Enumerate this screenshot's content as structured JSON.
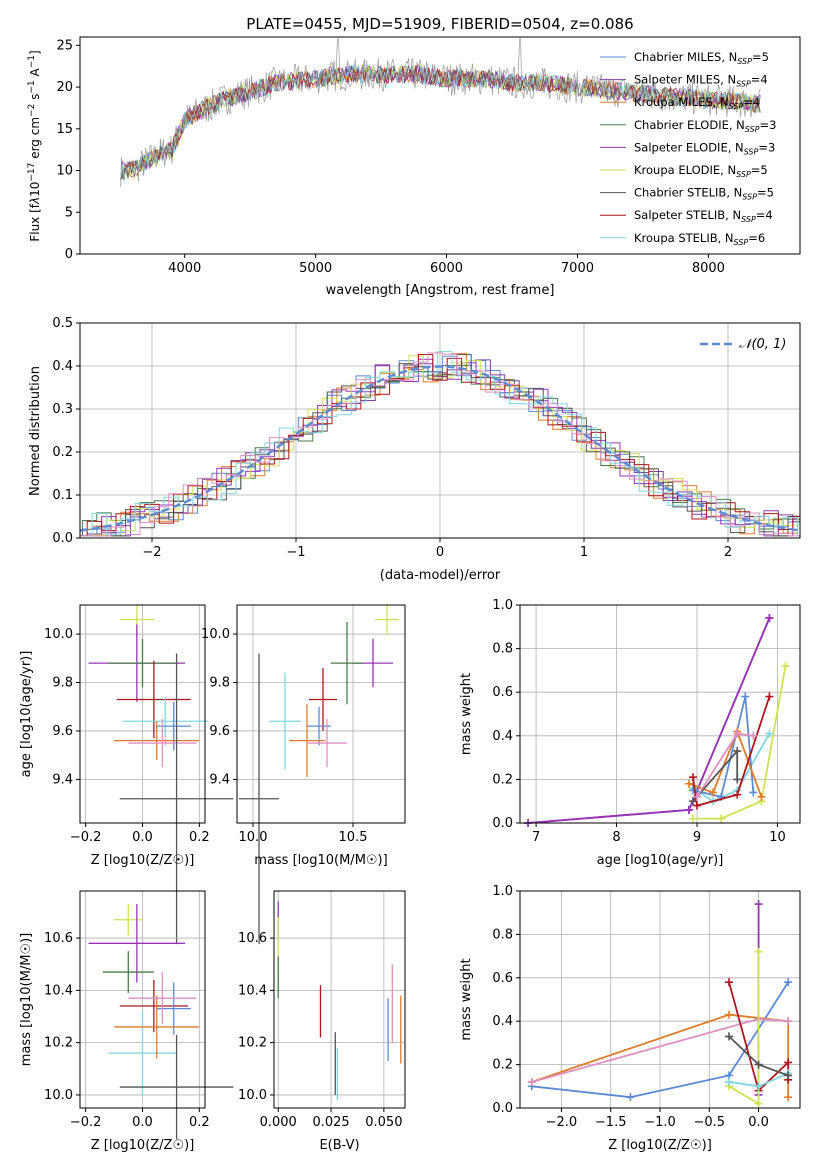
{
  "colors": {
    "chabrier_miles": "#5b8bd5",
    "salpeter_miles": "#7e3fa6",
    "kroupa_miles": "#e07b28",
    "chabrier_elodie": "#4a7a4a",
    "salpeter_elodie": "#9a35b8",
    "kroupa_elodie": "#cfe250",
    "chabrier_stelib": "#555555",
    "salpeter_stelib": "#b0141c",
    "kroupa_stelib": "#7fd6e0",
    "pink": "#e08fc4"
  },
  "chart_data": [
    {
      "id": "spectrum",
      "type": "line",
      "title": "PLATE=0455, MJD=51909, FIBERID=0504, z=0.086",
      "xlabel": "wavelength [Angstrom, rest frame]",
      "ylabel": "Flux [f_λ 10^-17 erg cm^-2 s^-1 A^-1]",
      "xlim": [
        3200,
        8700
      ],
      "ylim": [
        0,
        26
      ],
      "xticks": [
        4000,
        5000,
        6000,
        7000,
        8000
      ],
      "yticks": [
        0,
        5,
        10,
        15,
        20,
        25
      ],
      "grid": false,
      "legend_position": "top-right",
      "series": [
        {
          "name": "Chabrier MILES, N_SSP=5",
          "color": "#5b8bd5"
        },
        {
          "name": "Salpeter MILES, N_SSP=4",
          "color": "#7e3fa6"
        },
        {
          "name": "Kroupa MILES, N_SSP=4",
          "color": "#e07b28"
        },
        {
          "name": "Chabrier ELODIE, N_SSP=3",
          "color": "#4a7a4a"
        },
        {
          "name": "Salpeter ELODIE, N_SSP=3",
          "color": "#9a35b8"
        },
        {
          "name": "Kroupa ELODIE, N_SSP=5",
          "color": "#cfe250"
        },
        {
          "name": "Chabrier STELIB, N_SSP=5",
          "color": "#555555"
        },
        {
          "name": "Salpeter STELIB, N_SSP=4",
          "color": "#b0141c"
        },
        {
          "name": "Kroupa STELIB, N_SSP=6",
          "color": "#7fd6e0"
        }
      ],
      "continuum": {
        "x": [
          3500,
          3600,
          3800,
          3900,
          4000,
          4100,
          4300,
          4500,
          4700,
          5000,
          5200,
          5500,
          5800,
          6000,
          6300,
          6500,
          6700,
          7000,
          7300,
          7600,
          8000,
          8400
        ],
        "y": [
          10,
          10,
          12,
          12.5,
          16,
          17,
          18.5,
          19.5,
          20.5,
          21,
          21.5,
          21.5,
          21.5,
          21,
          21,
          20.5,
          20.5,
          20,
          19.5,
          19,
          18.5,
          18
        ]
      }
    },
    {
      "id": "residuals",
      "type": "line",
      "xlabel": "(data-model)/error",
      "ylabel": "Normed distribution",
      "xlim": [
        -2.5,
        2.5
      ],
      "ylim": [
        0,
        0.5
      ],
      "xticks": [
        -2,
        -1,
        0,
        1,
        2
      ],
      "yticks": [
        0.0,
        0.1,
        0.2,
        0.3,
        0.4,
        0.5
      ],
      "grid": true,
      "legend": "𝒩(0, 1)",
      "legend_position": "top-right",
      "reference_curve": "normal(0,1)"
    },
    {
      "id": "age_vs_Z",
      "type": "scatter",
      "xlabel": "Z [log10(Z/Z☉)]",
      "ylabel": "age [log10(age/yr)]",
      "xlim": [
        -0.22,
        0.22
      ],
      "ylim": [
        9.22,
        10.12
      ],
      "xticks": [
        -0.2,
        0.0,
        0.2
      ],
      "yticks": [
        9.4,
        9.6,
        9.8,
        10.0
      ],
      "grid": true,
      "points": [
        {
          "x": -0.02,
          "y": 10.06,
          "xerr": 0.06,
          "yerr": 0.06,
          "series": "kroupa_elodie"
        },
        {
          "x": -0.02,
          "y": 9.88,
          "xerr": 0.17,
          "yerr": 0.16,
          "series": "salpeter_elodie"
        },
        {
          "x": 0.0,
          "y": 9.88,
          "xerr": 0.12,
          "yerr": 0.1,
          "series": "chabrier_elodie"
        },
        {
          "x": 0.04,
          "y": 9.73,
          "xerr": 0.13,
          "yerr": 0.16,
          "series": "salpeter_stelib"
        },
        {
          "x": 0.08,
          "y": 9.64,
          "xerr": 0.15,
          "yerr": 0.1,
          "series": "kroupa_stelib"
        },
        {
          "x": 0.11,
          "y": 9.62,
          "xerr": 0.06,
          "yerr": 0.1,
          "series": "chabrier_miles"
        },
        {
          "x": 0.05,
          "y": 9.56,
          "xerr": 0.15,
          "yerr": 0.08,
          "series": "kroupa_miles"
        },
        {
          "x": 0.07,
          "y": 9.55,
          "xerr": 0.12,
          "yerr": 0.1,
          "series": "pink"
        },
        {
          "x": 0.12,
          "y": 9.32,
          "xerr": 0.2,
          "yerr": 0.6,
          "series": "chabrier_stelib"
        }
      ]
    },
    {
      "id": "age_vs_mass",
      "type": "scatter",
      "xlabel": "mass [log10(M/M☉)]",
      "ylabel": "",
      "xlim": [
        9.92,
        10.76
      ],
      "ylim": [
        9.22,
        10.12
      ],
      "xticks": [
        10.0,
        10.5
      ],
      "yticks": [
        9.4,
        9.6,
        9.8,
        10.0
      ],
      "grid": true,
      "points": [
        {
          "x": 10.67,
          "y": 10.06,
          "xerr": 0.06,
          "yerr": 0.06,
          "series": "kroupa_elodie"
        },
        {
          "x": 10.6,
          "y": 9.88,
          "xerr": 0.1,
          "yerr": 0.1,
          "series": "salpeter_elodie"
        },
        {
          "x": 10.47,
          "y": 9.88,
          "xerr": 0.08,
          "yerr": 0.17,
          "series": "chabrier_elodie"
        },
        {
          "x": 10.35,
          "y": 9.73,
          "xerr": 0.07,
          "yerr": 0.13,
          "series": "salpeter_stelib"
        },
        {
          "x": 10.16,
          "y": 9.64,
          "xerr": 0.08,
          "yerr": 0.2,
          "series": "kroupa_stelib"
        },
        {
          "x": 10.33,
          "y": 9.62,
          "xerr": 0.06,
          "yerr": 0.08,
          "series": "chabrier_miles"
        },
        {
          "x": 10.27,
          "y": 9.56,
          "xerr": 0.09,
          "yerr": 0.15,
          "series": "kroupa_miles"
        },
        {
          "x": 10.37,
          "y": 9.55,
          "xerr": 0.1,
          "yerr": 0.1,
          "series": "pink"
        },
        {
          "x": 10.03,
          "y": 9.32,
          "xerr": 0.1,
          "yerr": 0.6,
          "series": "chabrier_stelib"
        }
      ]
    },
    {
      "id": "weight_vs_age",
      "type": "line",
      "xlabel": "age [log10(age/yr)]",
      "ylabel": "mass weight",
      "xlim": [
        6.8,
        10.28
      ],
      "ylim": [
        0,
        1
      ],
      "xticks": [
        7,
        8,
        9,
        10
      ],
      "yticks": [
        0.0,
        0.2,
        0.4,
        0.6,
        0.8,
        1.0
      ],
      "grid": true,
      "series": [
        {
          "key": "salpeter_miles",
          "x": [
            6.9,
            8.9,
            9.9
          ],
          "y": [
            0.0,
            0.06,
            0.94
          ]
        },
        {
          "key": "salpeter_elodie",
          "x": [
            6.9,
            8.9,
            9.9
          ],
          "y": [
            0.0,
            0.06,
            0.94
          ]
        },
        {
          "key": "kroupa_elodie",
          "x": [
            8.95,
            9.3,
            9.8,
            10.1
          ],
          "y": [
            0.02,
            0.02,
            0.1,
            0.72
          ]
        },
        {
          "key": "kroupa_stelib",
          "x": [
            8.95,
            9.2,
            9.5,
            9.9
          ],
          "y": [
            0.16,
            0.1,
            0.15,
            0.41
          ]
        },
        {
          "key": "chabrier_miles",
          "x": [
            8.95,
            9.3,
            9.6,
            9.7
          ],
          "y": [
            0.15,
            0.12,
            0.58,
            0.14
          ]
        },
        {
          "key": "kroupa_miles",
          "x": [
            8.9,
            9.2,
            9.5,
            9.8
          ],
          "y": [
            0.18,
            0.14,
            0.42,
            0.12
          ]
        },
        {
          "key": "chabrier_stelib",
          "x": [
            8.95,
            9.5,
            9.5
          ],
          "y": [
            0.1,
            0.33,
            0.2
          ]
        },
        {
          "key": "salpeter_stelib",
          "x": [
            8.95,
            9.0,
            9.5,
            9.9
          ],
          "y": [
            0.21,
            0.08,
            0.13,
            0.58
          ]
        },
        {
          "key": "pink",
          "x": [
            9.0,
            9.5,
            9.7
          ],
          "y": [
            0.12,
            0.41,
            0.4
          ]
        }
      ]
    },
    {
      "id": "mass_vs_Z",
      "type": "scatter",
      "xlabel": "Z [log10(Z/Z☉)]",
      "ylabel": "mass [log10(M/M☉)]",
      "xlim": [
        -0.22,
        0.22
      ],
      "ylim": [
        9.95,
        10.78
      ],
      "xticks": [
        -0.2,
        0.0,
        0.2
      ],
      "yticks": [
        10.0,
        10.2,
        10.4,
        10.6
      ],
      "grid": true,
      "points": [
        {
          "x": -0.05,
          "y": 10.67,
          "xerr": 0.05,
          "yerr": 0.06,
          "series": "kroupa_elodie"
        },
        {
          "x": -0.02,
          "y": 10.58,
          "xerr": 0.17,
          "yerr": 0.15,
          "series": "salpeter_elodie"
        },
        {
          "x": -0.05,
          "y": 10.47,
          "xerr": 0.09,
          "yerr": 0.08,
          "series": "chabrier_elodie"
        },
        {
          "x": 0.04,
          "y": 10.34,
          "xerr": 0.12,
          "yerr": 0.1,
          "series": "salpeter_stelib"
        },
        {
          "x": 0.0,
          "y": 10.16,
          "xerr": 0.12,
          "yerr": 0.16,
          "series": "kroupa_stelib"
        },
        {
          "x": 0.11,
          "y": 10.33,
          "xerr": 0.06,
          "yerr": 0.1,
          "series": "chabrier_miles"
        },
        {
          "x": 0.05,
          "y": 10.26,
          "xerr": 0.15,
          "yerr": 0.12,
          "series": "kroupa_miles"
        },
        {
          "x": 0.07,
          "y": 10.37,
          "xerr": 0.12,
          "yerr": 0.1,
          "series": "pink"
        },
        {
          "x": 0.12,
          "y": 10.03,
          "xerr": 0.2,
          "yerr": 0.2,
          "series": "chabrier_stelib"
        }
      ]
    },
    {
      "id": "mass_vs_ebv",
      "type": "scatter",
      "xlabel": "E(B-V)",
      "ylabel": "",
      "xlim": [
        -0.002,
        0.06
      ],
      "ylim": [
        9.95,
        10.78
      ],
      "xticks": [
        0.0,
        0.025,
        0.05
      ],
      "yticks": [
        10.0,
        10.2,
        10.4,
        10.6
      ],
      "grid": true,
      "points": [
        {
          "x": 0.0,
          "y": 10.67,
          "xerr": 0,
          "yerr": 0.07,
          "series": "salpeter_elodie"
        },
        {
          "x": 0.0,
          "y": 10.58,
          "xerr": 0,
          "yerr": 0.1,
          "series": "kroupa_elodie"
        },
        {
          "x": 0.0,
          "y": 10.45,
          "xerr": 0,
          "yerr": 0.08,
          "series": "chabrier_elodie"
        },
        {
          "x": 0.02,
          "y": 10.32,
          "xerr": 0,
          "yerr": 0.1,
          "series": "salpeter_stelib"
        },
        {
          "x": 0.027,
          "y": 10.12,
          "xerr": 0,
          "yerr": 0.12,
          "series": "chabrier_stelib"
        },
        {
          "x": 0.028,
          "y": 10.08,
          "xerr": 0,
          "yerr": 0.1,
          "series": "kroupa_stelib"
        },
        {
          "x": 0.052,
          "y": 10.25,
          "xerr": 0,
          "yerr": 0.12,
          "series": "chabrier_miles"
        },
        {
          "x": 0.054,
          "y": 10.35,
          "xerr": 0,
          "yerr": 0.15,
          "series": "pink"
        },
        {
          "x": 0.058,
          "y": 10.25,
          "xerr": 0,
          "yerr": 0.13,
          "series": "kroupa_miles"
        }
      ]
    },
    {
      "id": "weight_vs_Z",
      "type": "line",
      "xlabel": "Z [log10(Z/Z☉)]",
      "ylabel": "mass weight",
      "xlim": [
        -2.42,
        0.42
      ],
      "ylim": [
        0,
        1
      ],
      "xticks": [
        -2.0,
        -1.5,
        -1.0,
        -0.5,
        0.0
      ],
      "yticks": [
        0.0,
        0.2,
        0.4,
        0.6,
        0.8,
        1.0
      ],
      "grid": true,
      "series": [
        {
          "key": "chabrier_miles",
          "x": [
            -2.3,
            -1.3,
            -0.3,
            0.3
          ],
          "y": [
            0.1,
            0.05,
            0.15,
            0.58
          ]
        },
        {
          "key": "kroupa_miles",
          "x": [
            -2.3,
            -0.3,
            0.3,
            0.3
          ],
          "y": [
            0.12,
            0.43,
            0.4,
            0.05
          ]
        },
        {
          "key": "pink",
          "x": [
            -2.3,
            0.0,
            0.3
          ],
          "y": [
            0.12,
            0.41,
            0.4
          ]
        },
        {
          "key": "salpeter_stelib",
          "x": [
            -0.3,
            0.0,
            0.3,
            0.3
          ],
          "y": [
            0.58,
            0.08,
            0.21,
            0.13
          ]
        },
        {
          "key": "salpeter_elodie",
          "x": [
            0.0,
            0.0
          ],
          "y": [
            0.94,
            0.06
          ]
        },
        {
          "key": "kroupa_elodie",
          "x": [
            0.0,
            0.0,
            -0.3
          ],
          "y": [
            0.72,
            0.02,
            0.1
          ]
        },
        {
          "key": "kroupa_stelib",
          "x": [
            -0.3,
            0.0,
            0.3
          ],
          "y": [
            0.12,
            0.1,
            0.16
          ]
        },
        {
          "key": "chabrier_stelib",
          "x": [
            -0.3,
            0.0,
            0.3
          ],
          "y": [
            0.33,
            0.2,
            0.15
          ]
        }
      ]
    }
  ]
}
